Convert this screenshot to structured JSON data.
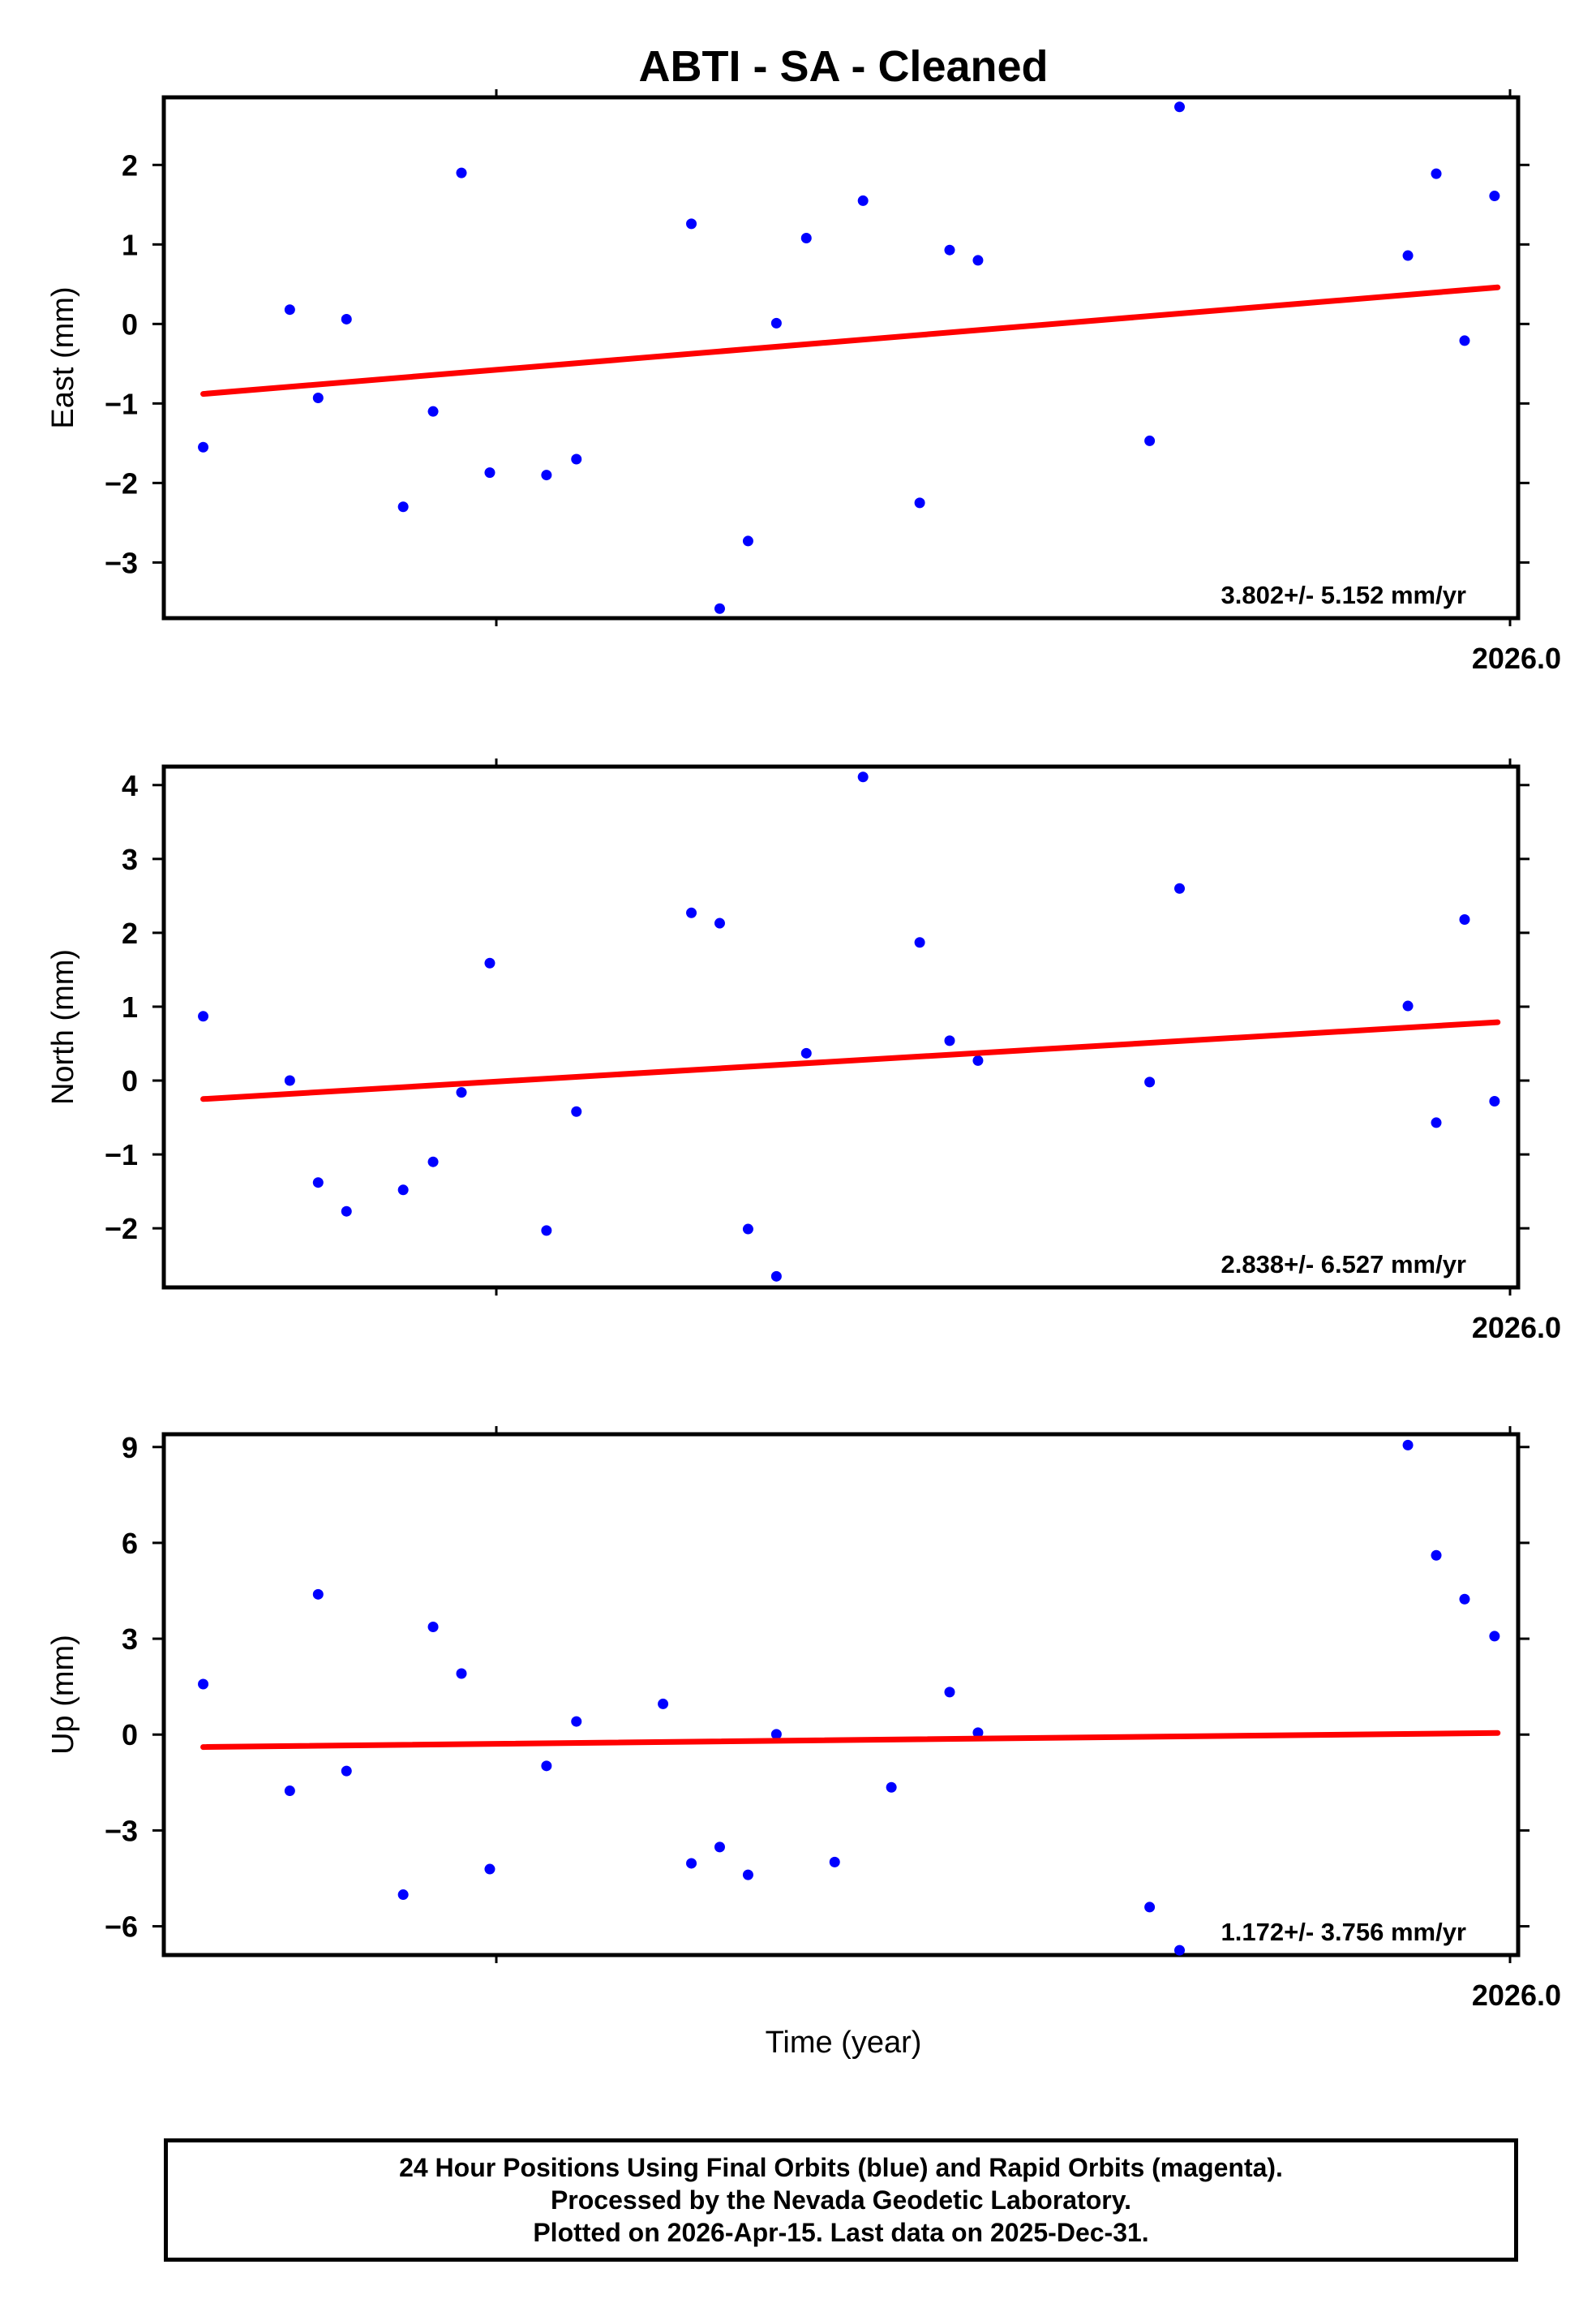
{
  "title": "ABTI  - SA - Cleaned",
  "colors": {
    "final_orbits": "#0000ff",
    "rapid_orbits": "#ff00ff",
    "trend": "#ff0000",
    "frame": "#000000"
  },
  "xlabel": "Time (year)",
  "chart_data": [
    {
      "type": "scatter",
      "ylabel": "East (mm)",
      "ylim": [
        -3.7,
        2.85
      ],
      "yticks": [
        -3,
        -2,
        -1,
        0,
        1,
        2
      ],
      "ytick_labels": [
        "−3",
        "−2",
        "−1",
        "0",
        "1",
        "2"
      ],
      "xlim": [
        2025.918,
        2026.004
      ],
      "xtick_label": "2026.0",
      "rate_text": "3.802+/- 5.152 mm/yr",
      "trend": {
        "x": [
          2025.9205,
          2026.0027
        ],
        "y": [
          -0.88,
          0.46
        ]
      },
      "series": [
        {
          "x": [
            2025.9205,
            2025.926,
            2025.9278,
            2025.9296,
            2025.9332,
            2025.9351,
            2025.9369,
            2025.9387,
            2025.9423,
            2025.9442,
            2025.9515,
            2025.9533,
            2025.9551,
            2025.9569,
            2025.9588,
            2025.9624,
            2025.966,
            2025.9679,
            2025.9697,
            2025.9806,
            2025.9825,
            2025.997,
            2025.9988,
            2026.0006,
            2026.0025
          ],
          "y": [
            -1.55,
            0.18,
            -0.93,
            0.06,
            -2.3,
            -1.1,
            1.9,
            -1.87,
            -1.9,
            -1.7,
            1.26,
            -3.58,
            -2.73,
            0.01,
            1.08,
            1.55,
            -2.25,
            0.93,
            0.8,
            -1.47,
            2.73,
            0.86,
            1.89,
            -0.21,
            1.61
          ]
        }
      ]
    },
    {
      "type": "scatter",
      "ylabel": "North (mm)",
      "ylim": [
        -2.8,
        4.25
      ],
      "yticks": [
        -2,
        -1,
        0,
        1,
        2,
        3,
        4
      ],
      "ytick_labels": [
        "−2",
        "−1",
        "0",
        "1",
        "2",
        "3",
        "4"
      ],
      "xlim": [
        2025.918,
        2026.004
      ],
      "xtick_label": "2026.0",
      "rate_text": "2.838+/- 6.527 mm/yr",
      "trend": {
        "x": [
          2025.9205,
          2026.0027
        ],
        "y": [
          -0.25,
          0.79
        ]
      },
      "series": [
        {
          "x": [
            2025.9205,
            2025.926,
            2025.9278,
            2025.9296,
            2025.9332,
            2025.9351,
            2025.9369,
            2025.9387,
            2025.9423,
            2025.9442,
            2025.9515,
            2025.9533,
            2025.9551,
            2025.9569,
            2025.9588,
            2025.9624,
            2025.966,
            2025.9679,
            2025.9697,
            2025.9806,
            2025.9825,
            2025.997,
            2025.9988,
            2026.0006,
            2026.0025
          ],
          "y": [
            0.87,
            0.0,
            -1.38,
            -1.77,
            -1.48,
            -1.1,
            -0.16,
            1.59,
            -2.03,
            -0.42,
            2.27,
            2.13,
            -2.01,
            -2.65,
            0.37,
            4.11,
            1.87,
            0.54,
            0.27,
            -0.02,
            2.6,
            1.01,
            -0.57,
            2.18,
            -0.28
          ]
        }
      ]
    },
    {
      "type": "scatter",
      "ylabel": "Up (mm)",
      "ylim": [
        -6.9,
        9.4
      ],
      "yticks": [
        -6,
        -3,
        0,
        3,
        6,
        9
      ],
      "ytick_labels": [
        "−6",
        "−3",
        "0",
        "3",
        "6",
        "9"
      ],
      "xlim": [
        2025.918,
        2026.004
      ],
      "xtick_label": "2026.0",
      "rate_text": "1.172+/- 3.756 mm/yr",
      "trend": {
        "x": [
          2025.9205,
          2026.0027
        ],
        "y": [
          -0.39,
          0.05
        ]
      },
      "series": [
        {
          "x": [
            2025.9205,
            2025.926,
            2025.9278,
            2025.9296,
            2025.9332,
            2025.9351,
            2025.9369,
            2025.9387,
            2025.9423,
            2025.9442,
            2025.9497,
            2025.9515,
            2025.9533,
            2025.9551,
            2025.9569,
            2025.9606,
            2025.9642,
            2025.9679,
            2025.9697,
            2025.9806,
            2025.9825,
            2025.997,
            2025.9988,
            2026.0006,
            2026.0025
          ],
          "y": [
            1.58,
            -1.76,
            4.39,
            -1.14,
            -5.01,
            3.37,
            1.91,
            -4.21,
            -0.98,
            0.41,
            0.96,
            -4.03,
            -3.52,
            -4.39,
            0.01,
            -3.99,
            -1.65,
            1.33,
            0.06,
            -5.4,
            -6.75,
            9.06,
            5.61,
            4.24,
            3.08
          ]
        }
      ]
    }
  ],
  "footer": {
    "line1": "24 Hour Positions Using Final Orbits (blue) and Rapid Orbits (magenta).",
    "line2": "Processed by the Nevada Geodetic Laboratory.",
    "line3": "Plotted on 2026-Apr-15. Last data on 2025-Dec-31."
  }
}
